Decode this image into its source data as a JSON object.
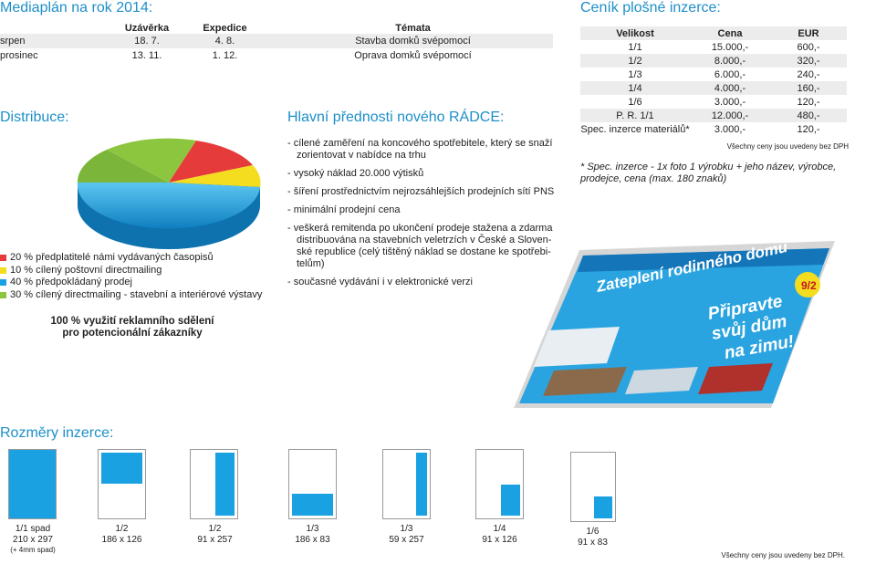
{
  "plan": {
    "title": "Mediaplán na rok 2014:",
    "headers": [
      "Uzávěrka",
      "Expedice",
      "Témata"
    ],
    "rows": [
      [
        "srpen",
        "18. 7.",
        "4. 8.",
        "Stavba domků svépomocí"
      ],
      [
        "prosinec",
        "13. 11.",
        "1. 12.",
        "Oprava domků svépomocí"
      ]
    ]
  },
  "distribution": {
    "title": "Distribuce:",
    "legend": [
      {
        "text": "20 % předplatitelé námi vydávaných časopisů",
        "color": "#e63b3b"
      },
      {
        "text": "10 % cílený poštovní directmailing",
        "color": "#f3dd1e"
      },
      {
        "text": "40 % předpokládaný prodej",
        "color": "#1aa1e1"
      },
      {
        "text": "30 % cílený directmailing - stavební a interiérové výstavy",
        "color": "#8cc63e"
      }
    ],
    "slices": [
      20,
      10,
      40,
      30
    ],
    "note_line1": "100 % využití reklamního sdělení",
    "note_line2": "pro potencionální zákazníky"
  },
  "advantages": {
    "title": "Hlavní přednosti nového RÁDCE:",
    "items": [
      {
        "l1": "- cílené zaměření na koncového spotřebitele, který se snaží",
        "l2": "zorientovat v nabídce na trhu",
        "l3": "",
        "l4": ""
      },
      {
        "l1": "- vysoký náklad 20.000 výtisků",
        "l2": "",
        "l3": "",
        "l4": ""
      },
      {
        "l1": "- šíření prostřednictvím nejrozsáhlejších prodejních sítí PNS",
        "l2": "",
        "l3": "",
        "l4": ""
      },
      {
        "l1": "- minimální prodejní cena",
        "l2": "",
        "l3": "",
        "l4": ""
      },
      {
        "l1": "- veškerá remitenda po ukončení prodeje stažena a zdarma",
        "l2": "distribuována na stavebních veletrzích v České a Sloven-",
        "l3": "ské republice (celý tištěný náklad se dostane ke spotřebi-",
        "l4": "telům)"
      },
      {
        "l1": "- současné vydávání i v elektronické verzi",
        "l2": "",
        "l3": "",
        "l4": ""
      }
    ]
  },
  "pricing": {
    "title": "Ceník plošné inzerce:",
    "headers": [
      "Velikost",
      "Cena",
      "EUR"
    ],
    "rows": [
      [
        "1/1",
        "15.000,-",
        "600,-"
      ],
      [
        "1/2",
        "8.000,-",
        "320,-"
      ],
      [
        "1/3",
        "6.000,-",
        "240,-"
      ],
      [
        "1/4",
        "4.000,-",
        "160,-"
      ],
      [
        "1/6",
        "3.000,-",
        "120,-"
      ],
      [
        "P. R. 1/1",
        "12.000,-",
        "480,-"
      ],
      [
        "Spec. inzerce materiálů*",
        "3.000,-",
        "120,-"
      ]
    ],
    "vat_note": "Všechny ceny jsou uvedeny bez DPH",
    "footnote_l1": "* Spec. inzerce - 1x foto 1 výrobku + jeho název, výrobce,",
    "footnote_l2": "prodejce, cena (max. 180 znaků)"
  },
  "magazine": {
    "headline1": "Zateplení rodinného domu",
    "headline2": "Připravte",
    "headline3": "svůj dům",
    "headline4": "na zimu!",
    "badge": "9/2"
  },
  "sizes": {
    "title": "Rozměry inzerce:",
    "items": [
      {
        "name": "1/1 spad",
        "dim": "210 x 297",
        "extra": "(+ 4mm spad)",
        "fill": 1
      },
      {
        "name": "1/2",
        "dim": "186 x 126",
        "extra": "",
        "fill": 0.5
      },
      {
        "name": "1/2",
        "dim": "91 x 257",
        "extra": "",
        "fill": 0.5
      },
      {
        "name": "1/3",
        "dim": "186 x 83",
        "extra": "",
        "fill": 0.333
      },
      {
        "name": "1/3",
        "dim": "59 x 257",
        "extra": "",
        "fill": 0.333
      },
      {
        "name": "1/4",
        "dim": "91 x 126",
        "extra": "",
        "fill": 0.25
      },
      {
        "name": "1/6",
        "dim": "91 x 83",
        "extra": "",
        "fill": 0.167
      }
    ],
    "footer": "Všechny ceny jsou uvedeny bez DPH."
  },
  "colors": {
    "accent": "#1d8fc9",
    "blue": "#1aa1e1",
    "red": "#e63b3b",
    "yellow": "#f3dd1e",
    "green": "#8cc63e"
  }
}
